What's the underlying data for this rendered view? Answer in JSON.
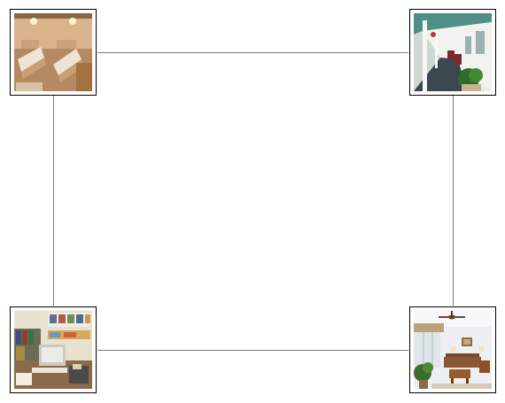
{
  "thumbnails": [
    {
      "id": "bedroom",
      "scene": "bedroom-photo-icon"
    },
    {
      "id": "porch",
      "scene": "porch-photo-icon"
    },
    {
      "id": "office",
      "scene": "office-photo-icon"
    },
    {
      "id": "living-room",
      "scene": "living-room-photo-icon"
    }
  ],
  "colors": {
    "connector": "#7a7a7a",
    "frame_border": "#000000",
    "background": "#ffffff"
  }
}
